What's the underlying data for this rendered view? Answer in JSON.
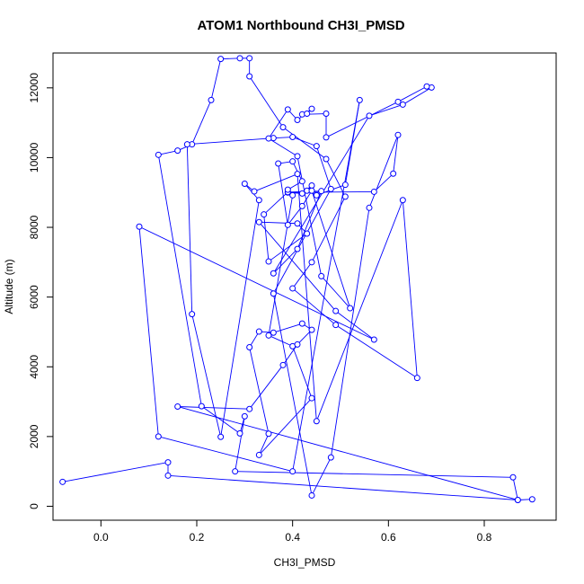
{
  "chart_data": {
    "type": "line",
    "title": "ATOM1 Northbound CH3I_PMSD",
    "xlabel": "CH3I_PMSD",
    "ylabel": "Altitude (m)",
    "xlim": [
      -0.1,
      0.95
    ],
    "ylim": [
      -400,
      13000
    ],
    "x_ticks": [
      0.0,
      0.2,
      0.4,
      0.6,
      0.8
    ],
    "x_tick_labels": [
      "0.0",
      "0.2",
      "0.4",
      "0.6",
      "0.8"
    ],
    "y_ticks": [
      0,
      2000,
      4000,
      6000,
      8000,
      10000,
      12000
    ],
    "y_tick_labels": [
      "0",
      "2000",
      "4000",
      "6000",
      "8000",
      "10000",
      "12000"
    ],
    "grid": false,
    "line_style": "line-with-open-circle-markers",
    "series_color": "#0000ff",
    "series": [
      {
        "points": [
          [
            -0.08,
            700
          ],
          [
            0.14,
            1260
          ],
          [
            0.14,
            880
          ],
          [
            0.87,
            180
          ],
          [
            0.86,
            830
          ],
          [
            0.28,
            1000
          ],
          [
            0.3,
            2580
          ],
          [
            0.29,
            2090
          ],
          [
            0.21,
            2870
          ],
          [
            0.12,
            10080
          ],
          [
            0.16,
            10200
          ],
          [
            0.19,
            10380
          ],
          [
            0.23,
            11650
          ],
          [
            0.25,
            12830
          ],
          [
            0.29,
            12850
          ],
          [
            0.31,
            12850
          ],
          [
            0.31,
            12330
          ],
          [
            0.38,
            10870
          ],
          [
            0.47,
            9960
          ],
          [
            0.51,
            8880
          ],
          [
            0.44,
            7000
          ],
          [
            0.4,
            6250
          ],
          [
            0.49,
            5200
          ],
          [
            0.66,
            3680
          ],
          [
            0.63,
            8780
          ],
          [
            0.45,
            2440
          ],
          [
            0.41,
            9530
          ],
          [
            0.32,
            9030
          ],
          [
            0.3,
            9250
          ],
          [
            0.33,
            8780
          ],
          [
            0.25,
            1990
          ],
          [
            0.19,
            5510
          ],
          [
            0.18,
            10380
          ],
          [
            0.36,
            10560
          ],
          [
            0.4,
            10590
          ],
          [
            0.45,
            10330
          ],
          [
            0.48,
            9100
          ],
          [
            0.36,
            6100
          ],
          [
            0.44,
            310
          ],
          [
            0.48,
            1400
          ],
          [
            0.56,
            8560
          ],
          [
            0.62,
            10650
          ],
          [
            0.61,
            9540
          ],
          [
            0.57,
            9020
          ],
          [
            0.39,
            9000
          ],
          [
            0.42,
            8970
          ],
          [
            0.44,
            9200
          ],
          [
            0.43,
            9050
          ],
          [
            0.45,
            8920
          ],
          [
            0.51,
            9220
          ],
          [
            0.54,
            11650
          ],
          [
            0.4,
            1000
          ],
          [
            0.12,
            2000
          ],
          [
            0.08,
            8020
          ],
          [
            0.57,
            4780
          ],
          [
            0.49,
            5600
          ],
          [
            0.33,
            8150
          ],
          [
            0.41,
            8110
          ],
          [
            0.43,
            7820
          ],
          [
            0.35,
            7020
          ],
          [
            0.34,
            8370
          ],
          [
            0.39,
            9010
          ],
          [
            0.46,
            9040
          ],
          [
            0.41,
            7380
          ],
          [
            0.36,
            6680
          ],
          [
            0.56,
            11200
          ],
          [
            0.63,
            11520
          ],
          [
            0.69,
            12010
          ],
          [
            0.68,
            12040
          ],
          [
            0.62,
            11600
          ],
          [
            0.47,
            10580
          ],
          [
            0.47,
            11260
          ],
          [
            0.42,
            11240
          ],
          [
            0.43,
            11260
          ],
          [
            0.44,
            11400
          ],
          [
            0.41,
            11080
          ],
          [
            0.39,
            11380
          ],
          [
            0.35,
            10550
          ],
          [
            0.41,
            10040
          ],
          [
            0.46,
            6600
          ],
          [
            0.52,
            5680
          ],
          [
            0.44,
            9050
          ],
          [
            0.42,
            8610
          ],
          [
            0.39,
            8070
          ],
          [
            0.37,
            9830
          ],
          [
            0.4,
            9890
          ],
          [
            0.42,
            9320
          ],
          [
            0.39,
            9080
          ],
          [
            0.4,
            8920
          ],
          [
            0.35,
            4900
          ],
          [
            0.4,
            4590
          ],
          [
            0.44,
            3100
          ],
          [
            0.33,
            1470
          ],
          [
            0.35,
            2080
          ],
          [
            0.31,
            4560
          ],
          [
            0.33,
            5010
          ],
          [
            0.36,
            4980
          ],
          [
            0.42,
            5240
          ],
          [
            0.44,
            5060
          ],
          [
            0.41,
            4640
          ],
          [
            0.38,
            4050
          ],
          [
            0.31,
            2790
          ],
          [
            0.16,
            2860
          ],
          [
            0.87,
            180
          ],
          [
            0.9,
            200
          ]
        ]
      }
    ]
  }
}
